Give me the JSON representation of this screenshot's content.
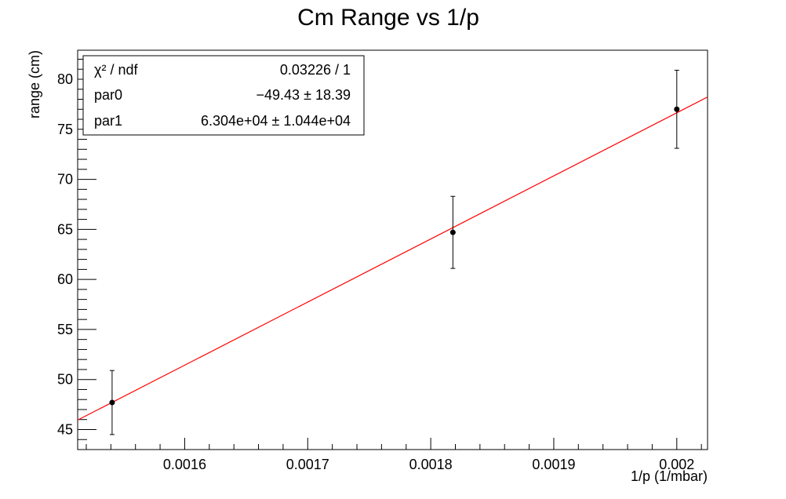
{
  "chart_data": {
    "type": "scatter",
    "title": "Cm Range vs 1/p",
    "xlabel": "1/p (1/mbar)",
    "ylabel": "range (cm)",
    "xlim": [
      0.001513,
      0.002025
    ],
    "ylim": [
      43.0,
      82.9
    ],
    "x_ticks": [
      0.0016,
      0.0017,
      0.0018,
      0.0019,
      0.002
    ],
    "x_tick_labels": [
      "0.0016",
      "0.0017",
      "0.0018",
      "0.0019",
      "0.002"
    ],
    "y_ticks": [
      45,
      50,
      55,
      60,
      65,
      70,
      75,
      80
    ],
    "y_tick_labels": [
      "45",
      "50",
      "55",
      "60",
      "65",
      "70",
      "75",
      "80"
    ],
    "grid": false,
    "series": [
      {
        "points": [
          {
            "x": 0.001541,
            "y": 47.7,
            "yerr": 3.2
          },
          {
            "x": 0.001818,
            "y": 64.7,
            "yerr": 3.6
          },
          {
            "x": 0.002,
            "y": 77.0,
            "yerr": 3.9
          }
        ],
        "color": "#000000"
      }
    ],
    "fit": {
      "type": "linear",
      "par0": -49.43,
      "par1": 63040,
      "color": "#ff0000"
    },
    "stats_box": {
      "position": "top-left",
      "rows": [
        {
          "label": "χ² / ndf",
          "value": "0.03226 / 1"
        },
        {
          "label": "par0",
          "value": "−49.43 ± 18.39"
        },
        {
          "label": "par1",
          "value": "6.304e+04 ± 1.044e+04"
        }
      ]
    }
  }
}
